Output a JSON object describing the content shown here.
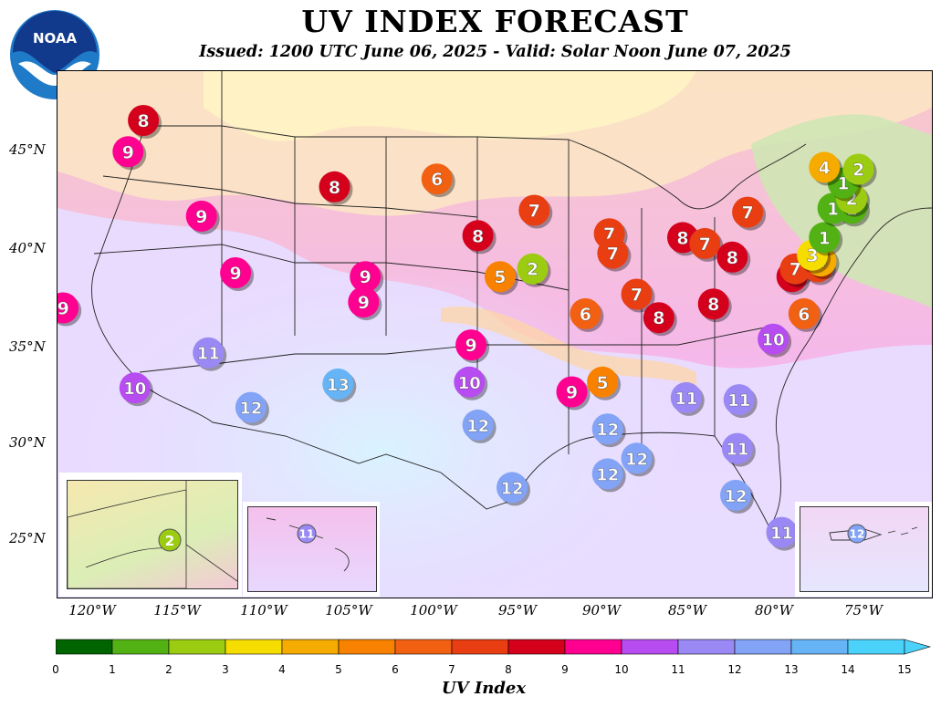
{
  "header": {
    "title": "UV INDEX FORECAST",
    "subtitle": "Issued: 1200 UTC June 06, 2025 - Valid: Solar Noon June 07, 2025",
    "logo_text": "NOAA"
  },
  "axes": {
    "lat_labels": [
      {
        "text": "45°N",
        "lat": 45
      },
      {
        "text": "40°N",
        "lat": 40
      },
      {
        "text": "35°N",
        "lat": 35
      },
      {
        "text": "30°N",
        "lat": 30
      },
      {
        "text": "25°N",
        "lat": 25
      }
    ],
    "lon_labels": [
      {
        "text": "120°W",
        "lon": -120
      },
      {
        "text": "115°W",
        "lon": -115
      },
      {
        "text": "110°W",
        "lon": -110
      },
      {
        "text": "105°W",
        "lon": -105
      },
      {
        "text": "100°W",
        "lon": -100
      },
      {
        "text": "95°W",
        "lon": -95
      },
      {
        "text": "90°W",
        "lon": -90
      },
      {
        "text": "85°W",
        "lon": -85
      },
      {
        "text": "80°W",
        "lon": -80
      },
      {
        "text": "75°W",
        "lon": -75
      }
    ]
  },
  "colorbar": {
    "title": "UV Index",
    "ticks": [
      "0",
      "1",
      "2",
      "3",
      "4",
      "5",
      "6",
      "7",
      "8",
      "9",
      "10",
      "11",
      "12",
      "13",
      "14",
      "15"
    ],
    "colors": [
      "#006400",
      "#52b213",
      "#9ccc12",
      "#f5dd00",
      "#f5ab00",
      "#f88200",
      "#f26012",
      "#e83e12",
      "#d4001c",
      "#ff0090",
      "#b74cf0",
      "#9a89f5",
      "#83a3f7",
      "#66b4f6",
      "#4bd2fb"
    ]
  },
  "level_colors": {
    "1": "#52b213",
    "2": "#9ccc12",
    "3": "#f5dd00",
    "4": "#f5ab00",
    "5": "#f88200",
    "6": "#f26012",
    "7": "#e83e12",
    "8": "#d4001c",
    "9": "#ff0090",
    "10": "#b74cf0",
    "11": "#9a89f5",
    "12": "#83a3f7",
    "13": "#66b4f6"
  },
  "stations": [
    {
      "v": "8",
      "lon": -117.0,
      "lat": 46.4
    },
    {
      "v": "9",
      "lon": -117.9,
      "lat": 44.8
    },
    {
      "v": "9",
      "lon": -113.6,
      "lat": 41.5
    },
    {
      "v": "8",
      "lon": -105.8,
      "lat": 43.0
    },
    {
      "v": "6",
      "lon": -99.8,
      "lat": 43.4
    },
    {
      "v": "9",
      "lon": -121.7,
      "lat": 36.8
    },
    {
      "v": "9",
      "lon": -111.6,
      "lat": 38.6
    },
    {
      "v": "9",
      "lon": -104.0,
      "lat": 38.4
    },
    {
      "v": "9",
      "lon": -104.1,
      "lat": 37.1
    },
    {
      "v": "11",
      "lon": -113.2,
      "lat": 34.5
    },
    {
      "v": "10",
      "lon": -117.5,
      "lat": 32.7
    },
    {
      "v": "12",
      "lon": -110.7,
      "lat": 31.7
    },
    {
      "v": "13",
      "lon": -105.6,
      "lat": 32.9
    },
    {
      "v": "8",
      "lon": -97.4,
      "lat": 40.5
    },
    {
      "v": "5",
      "lon": -96.1,
      "lat": 38.4
    },
    {
      "v": "2",
      "lon": -94.2,
      "lat": 38.8
    },
    {
      "v": "7",
      "lon": -94.1,
      "lat": 41.8
    },
    {
      "v": "9",
      "lon": -97.8,
      "lat": 34.9
    },
    {
      "v": "10",
      "lon": -97.9,
      "lat": 33.0
    },
    {
      "v": "12",
      "lon": -97.4,
      "lat": 30.8
    },
    {
      "v": "12",
      "lon": -95.4,
      "lat": 27.6
    },
    {
      "v": "9",
      "lon": -91.9,
      "lat": 32.5
    },
    {
      "v": "5",
      "lon": -90.1,
      "lat": 33.0
    },
    {
      "v": "6",
      "lon": -91.1,
      "lat": 36.5
    },
    {
      "v": "7",
      "lon": -89.7,
      "lat": 40.6
    },
    {
      "v": "7",
      "lon": -89.5,
      "lat": 39.6
    },
    {
      "v": "7",
      "lon": -88.1,
      "lat": 37.5
    },
    {
      "v": "8",
      "lon": -86.8,
      "lat": 36.3
    },
    {
      "v": "8",
      "lon": -85.4,
      "lat": 40.4
    },
    {
      "v": "7",
      "lon": -84.1,
      "lat": 40.1
    },
    {
      "v": "8",
      "lon": -82.5,
      "lat": 39.4
    },
    {
      "v": "7",
      "lon": -81.6,
      "lat": 41.7
    },
    {
      "v": "8",
      "lon": -83.6,
      "lat": 37.0
    },
    {
      "v": "12",
      "lon": -89.8,
      "lat": 30.6
    },
    {
      "v": "12",
      "lon": -89.8,
      "lat": 28.3
    },
    {
      "v": "12",
      "lon": -88.1,
      "lat": 29.1
    },
    {
      "v": "11",
      "lon": -85.2,
      "lat": 32.2
    },
    {
      "v": "11",
      "lon": -82.1,
      "lat": 32.1
    },
    {
      "v": "11",
      "lon": -82.2,
      "lat": 29.6
    },
    {
      "v": "12",
      "lon": -82.3,
      "lat": 27.2
    },
    {
      "v": "11",
      "lon": -79.6,
      "lat": 25.3
    },
    {
      "v": "10",
      "lon": -80.1,
      "lat": 35.2
    },
    {
      "v": "6",
      "lon": -78.3,
      "lat": 36.5
    },
    {
      "v": "8",
      "lon": -79.0,
      "lat": 38.4
    },
    {
      "v": "7",
      "lon": -78.8,
      "lat": 38.8
    },
    {
      "v": "7",
      "lon": -77.5,
      "lat": 38.9
    },
    {
      "v": "4",
      "lon": -77.3,
      "lat": 39.2
    },
    {
      "v": "3",
      "lon": -77.8,
      "lat": 39.5
    },
    {
      "v": "1",
      "lon": -77.1,
      "lat": 40.4
    },
    {
      "v": "1",
      "lon": -76.6,
      "lat": 41.9
    },
    {
      "v": "1",
      "lon": -75.5,
      "lat": 41.9
    },
    {
      "v": "2",
      "lon": -75.5,
      "lat": 42.4
    },
    {
      "v": "1",
      "lon": -76.0,
      "lat": 43.2
    },
    {
      "v": "2",
      "lon": -75.1,
      "lat": 43.9
    },
    {
      "v": "4",
      "lon": -77.1,
      "lat": 44.0
    }
  ],
  "insets": {
    "alaska_value": "2",
    "hawaii_value": "11",
    "puerto_rico_value": "12"
  }
}
